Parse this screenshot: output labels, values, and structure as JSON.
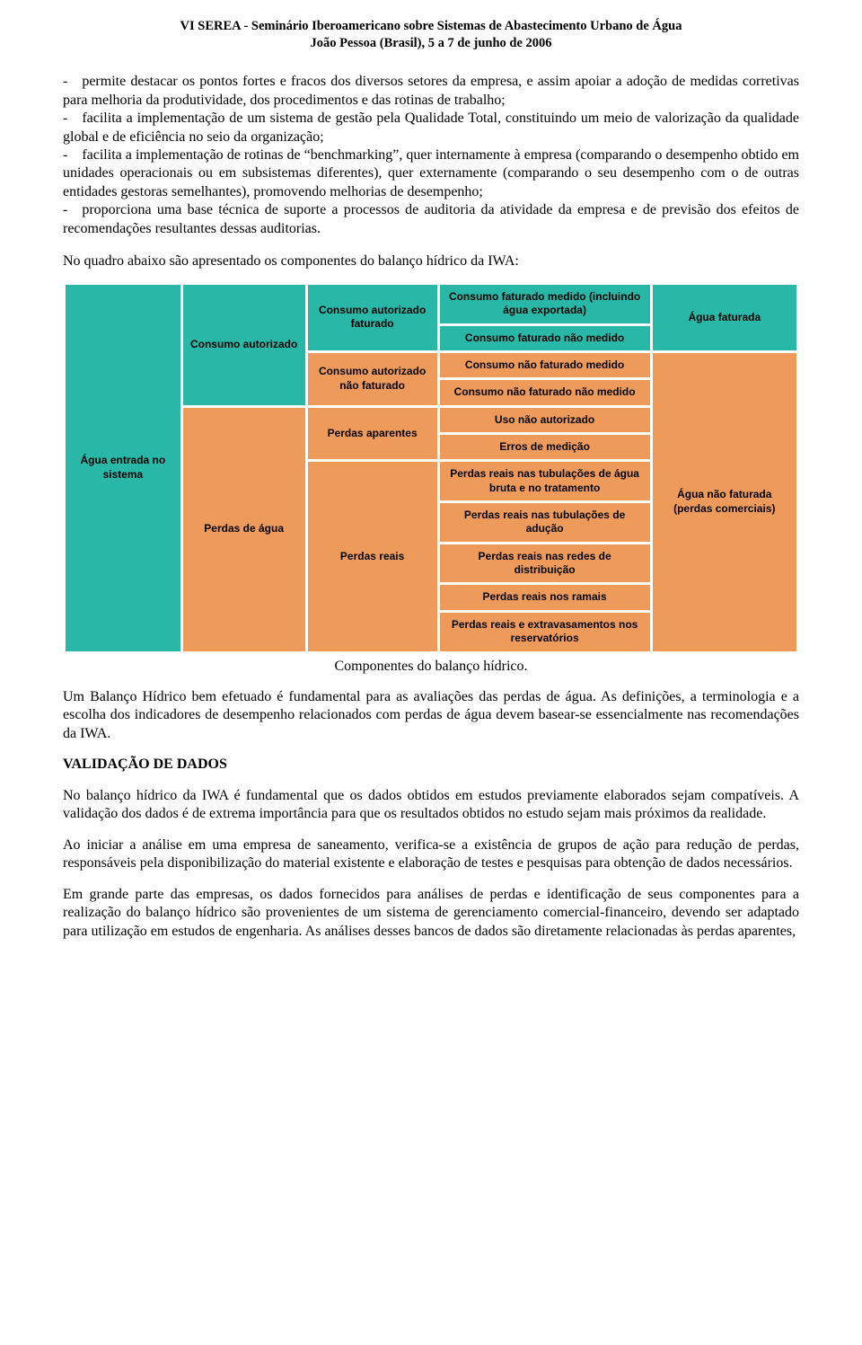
{
  "header": {
    "line1": "VI SEREA - Seminário Iberoamericano sobre Sistemas de Abastecimento Urbano de Água",
    "line2": "João Pessoa (Brasil), 5 a 7 de junho de 2006"
  },
  "bullets": {
    "b1": "- permite destacar os pontos fortes e fracos dos diversos setores da empresa, e assim apoiar a adoção de medidas corretivas para melhoria da produtividade, dos procedimentos e das rotinas de trabalho;",
    "b2": "- facilita a implementação de um sistema de gestão pela Qualidade Total, constituindo um meio de valorização da qualidade global e de eficiência no seio da organização;",
    "b3": "- facilita a implementação de rotinas de “benchmarking”, quer internamente à empresa (comparando o desempenho obtido em unidades operacionais ou em subsistemas diferentes), quer externamente (comparando o seu desempenho com o de outras entidades gestoras semelhantes), promovendo melhorias de desempenho;",
    "b4": "- proporciona uma base técnica de suporte a processos de auditoria da atividade da empresa e de previsão dos efeitos de recomendações resultantes dessas auditorias."
  },
  "intro": "No quadro abaixo são apresentado os componentes do balanço hídrico da IWA:",
  "diagram": {
    "colors": {
      "teal": "#29b8a7",
      "orange": "#ee9a5a",
      "border": "#ffffff"
    },
    "col1": {
      "label": "Água entrada no sistema",
      "color": "teal"
    },
    "col2": [
      {
        "label": "Consumo autorizado",
        "color": "teal",
        "rowspan": 4
      },
      {
        "label": "Perdas de água",
        "color": "orange",
        "rowspan": 7
      }
    ],
    "col3": [
      {
        "label": "Consumo autorizado faturado",
        "color": "teal",
        "rowspan": 2
      },
      {
        "label": "Consumo autorizado não faturado",
        "color": "orange",
        "rowspan": 2
      },
      {
        "label": "Perdas aparentes",
        "color": "orange",
        "rowspan": 2
      },
      {
        "label": "Perdas reais",
        "color": "orange",
        "rowspan": 5
      }
    ],
    "col4": [
      {
        "label": "Consumo faturado medido (incluindo água exportada)",
        "color": "teal"
      },
      {
        "label": "Consumo faturado não medido",
        "color": "teal"
      },
      {
        "label": "Consumo não faturado medido",
        "color": "orange"
      },
      {
        "label": "Consumo não faturado não medido",
        "color": "orange"
      },
      {
        "label": "Uso não autorizado",
        "color": "orange"
      },
      {
        "label": "Erros de medição",
        "color": "orange"
      },
      {
        "label": "Perdas reais nas tubulações de água bruta e no tratamento",
        "color": "orange"
      },
      {
        "label": "Perdas reais nas tubulações de adução",
        "color": "orange"
      },
      {
        "label": "Perdas reais nas redes de distribuição",
        "color": "orange"
      },
      {
        "label": "Perdas reais nos ramais",
        "color": "orange"
      },
      {
        "label": "Perdas reais e extravasamentos nos reservatórios",
        "color": "orange"
      }
    ],
    "col5": [
      {
        "label": "Água faturada",
        "color": "teal",
        "rowspan": 2
      },
      {
        "label": "Água não faturada (perdas comerciais)",
        "color": "orange",
        "rowspan": 9
      }
    ],
    "caption": "Componentes do balanço hídrico."
  },
  "para_after": "Um Balanço Hídrico bem efetuado é fundamental para as avaliações das perdas de água. As definições, a terminologia e a escolha dos indicadores de desempenho relacionados com perdas de água devem basear-se essencialmente nas recomendações da IWA.",
  "section_title": "VALIDAÇÃO DE DADOS",
  "para_v1": "No balanço hídrico da IWA é fundamental que os dados obtidos em estudos previamente elaborados sejam compatíveis. A validação dos dados é de extrema importância para que os resultados obtidos no estudo sejam mais próximos da realidade.",
  "para_v2": "Ao iniciar a análise em uma empresa de saneamento, verifica-se a existência de grupos de ação para redução de perdas, responsáveis pela disponibilização do material existente e elaboração de testes e pesquisas para obtenção de dados necessários.",
  "para_v3": "Em grande parte das empresas, os dados fornecidos para análises de perdas e identificação de seus componentes para a realização do balanço hídrico são provenientes de um sistema de gerenciamento comercial-financeiro, devendo ser adaptado para utilização em estudos de engenharia. As análises desses bancos de dados são diretamente relacionadas às perdas aparentes,"
}
